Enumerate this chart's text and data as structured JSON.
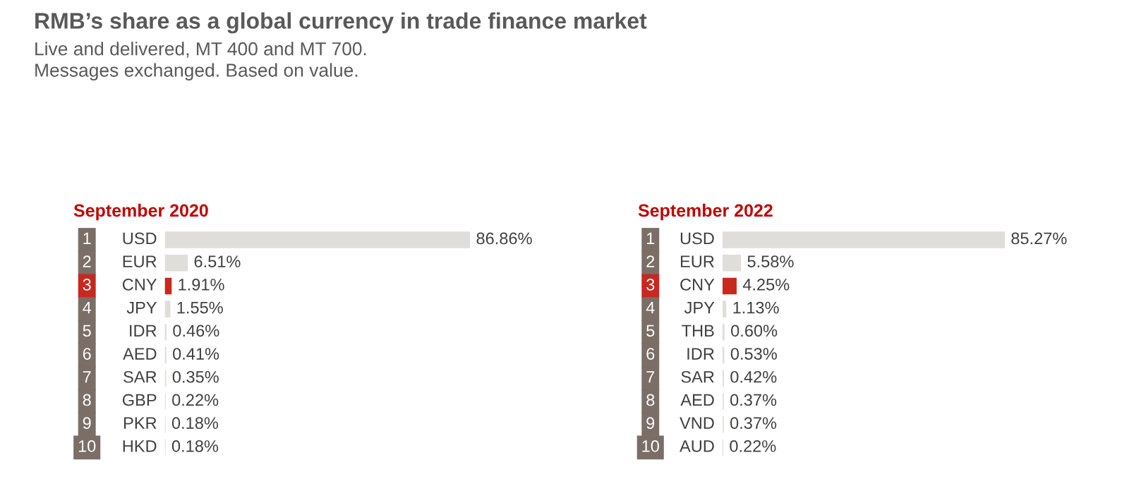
{
  "chart_data": [
    {
      "type": "bar",
      "orientation": "horizontal",
      "title": "September 2020",
      "categories": [
        "USD",
        "EUR",
        "CNY",
        "JPY",
        "IDR",
        "AED",
        "SAR",
        "GBP",
        "PKR",
        "HKD"
      ],
      "values": [
        86.86,
        6.51,
        1.91,
        1.55,
        0.46,
        0.41,
        0.35,
        0.22,
        0.18,
        0.18
      ],
      "value_labels": [
        "86.86%",
        "6.51%",
        "1.91%",
        "1.55%",
        "0.46%",
        "0.41%",
        "0.35%",
        "0.22%",
        "0.18%",
        "0.18%"
      ],
      "colors": [
        "#e0dedb",
        "#e0dedb",
        "#c8281e",
        "#e0dedb",
        "#e0dedb",
        "#e0dedb",
        "#e0dedb",
        "#e0dedb",
        "#e0dedb",
        "#e0dedb"
      ],
      "annotations": [
        "1",
        "2",
        "3",
        "4",
        "5",
        "6",
        "7",
        "8",
        "9",
        "10",
        "RMB’s share as a global currency in trade finance market",
        "Live and delivered, MT 400 and MT 700.\nMessages exchanged. Based on value."
      ],
      "tick_labels": "y"
    },
    {
      "type": "bar",
      "orientation": "horizontal",
      "title": "September 2022",
      "categories": [
        "USD",
        "EUR",
        "CNY",
        "JPY",
        "THB",
        "IDR",
        "SAR",
        "AED",
        "VND",
        "AUD"
      ],
      "values": [
        85.27,
        5.58,
        4.25,
        1.13,
        0.6,
        0.53,
        0.42,
        0.37,
        0.37,
        0.22
      ],
      "value_labels": [
        "85.27%",
        "5.58%",
        "4.25%",
        "1.13%",
        "0.60%",
        "0.53%",
        "0.42%",
        "0.37%",
        "0.37%",
        "0.22%"
      ],
      "colors": [
        "#e0dedb",
        "#e0dedb",
        "#c8281e",
        "#e0dedb",
        "#e0dedb",
        "#e0dedb",
        "#e0dedb",
        "#e0dedb",
        "#e0dedb",
        "#e0dedb"
      ],
      "annotations": [
        "1",
        "2",
        "3",
        "4",
        "5",
        "6",
        "7",
        "8",
        "9",
        "10"
      ],
      "tick_labels": "y"
    }
  ]
}
